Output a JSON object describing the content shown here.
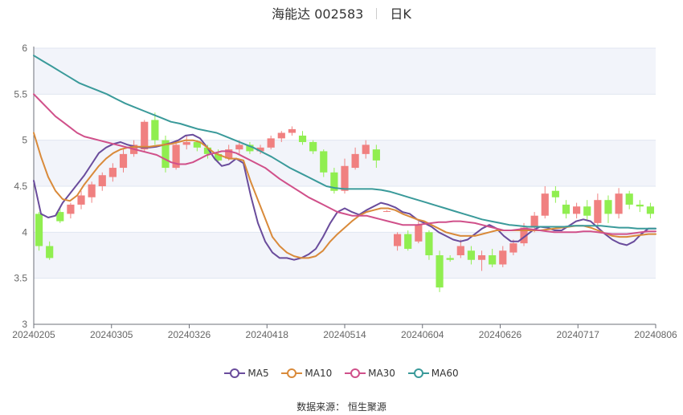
{
  "title": {
    "name": "海能达 002583",
    "period": "日K"
  },
  "source": "数据来源： 恒生聚源",
  "chart_data": {
    "type": "candlestick",
    "ylim": [
      3,
      6
    ],
    "y_ticks": [
      "3",
      "3.5",
      "4",
      "4.5",
      "5",
      "5.5",
      "6"
    ],
    "x_ticks": [
      "20240205",
      "20240305",
      "20240326",
      "20240418",
      "20240514",
      "20240604",
      "20240626",
      "20240717",
      "20240806"
    ],
    "grid": true,
    "colors": {
      "up": "#f08080",
      "down": "#90ee50",
      "band": "#f2f4fa",
      "grid": "#e0e6f1"
    },
    "legend_position": "bottom",
    "series": [
      {
        "name": "MA5",
        "color": "#6a4c9c",
        "values": [
          4.56,
          4.2,
          4.16,
          4.18,
          4.32,
          4.42,
          4.52,
          4.62,
          4.74,
          4.86,
          4.92,
          4.96,
          4.98,
          4.95,
          4.93,
          4.92,
          4.92,
          4.93,
          4.95,
          4.97,
          5.0,
          5.05,
          5.06,
          5.02,
          4.92,
          4.8,
          4.72,
          4.74,
          4.8,
          4.75,
          4.4,
          4.1,
          3.9,
          3.78,
          3.72,
          3.72,
          3.7,
          3.72,
          3.76,
          3.82,
          3.95,
          4.1,
          4.22,
          4.26,
          4.22,
          4.19,
          4.24,
          4.28,
          4.32,
          4.3,
          4.27,
          4.22,
          4.2,
          4.14,
          4.1,
          4.06,
          4.0,
          3.96,
          3.92,
          3.9,
          3.92,
          3.98,
          4.04,
          4.08,
          4.04,
          3.96,
          3.9,
          3.9,
          3.96,
          4.02,
          4.06,
          4.05,
          4.02,
          4.02,
          4.07,
          4.12,
          4.14,
          4.12,
          4.05,
          3.98,
          3.92,
          3.88,
          3.86,
          3.9,
          3.98,
          4.04,
          4.04
        ]
      },
      {
        "name": "MA10",
        "color": "#d98a3a",
        "values": [
          5.08,
          4.82,
          4.6,
          4.45,
          4.36,
          4.34,
          4.4,
          4.52,
          4.62,
          4.72,
          4.8,
          4.86,
          4.9,
          4.92,
          4.93,
          4.93,
          4.93,
          4.94,
          4.95,
          4.96,
          4.98,
          5.0,
          5.0,
          4.98,
          4.92,
          4.86,
          4.83,
          4.8,
          4.8,
          4.78,
          4.55,
          4.35,
          4.15,
          3.95,
          3.85,
          3.78,
          3.74,
          3.72,
          3.72,
          3.74,
          3.8,
          3.9,
          3.98,
          4.05,
          4.12,
          4.18,
          4.22,
          4.24,
          4.26,
          4.26,
          4.24,
          4.2,
          4.17,
          4.14,
          4.12,
          4.08,
          4.04,
          4.0,
          3.98,
          3.96,
          3.96,
          3.96,
          3.98,
          4.0,
          4.02,
          4.02,
          4.02,
          4.02,
          4.02,
          4.02,
          4.02,
          4.03,
          4.04,
          4.05,
          4.06,
          4.07,
          4.07,
          4.05,
          4.02,
          3.99,
          3.96,
          3.95,
          3.95,
          3.96,
          3.97,
          3.98,
          3.98
        ]
      },
      {
        "name": "MA30",
        "color": "#d0508a",
        "values": [
          5.5,
          5.42,
          5.34,
          5.26,
          5.2,
          5.14,
          5.08,
          5.04,
          5.02,
          5.0,
          4.98,
          4.96,
          4.94,
          4.92,
          4.9,
          4.88,
          4.86,
          4.84,
          4.8,
          4.76,
          4.74,
          4.74,
          4.76,
          4.8,
          4.84,
          4.86,
          4.88,
          4.88,
          4.86,
          4.82,
          4.78,
          4.74,
          4.7,
          4.64,
          4.58,
          4.53,
          4.48,
          4.43,
          4.38,
          4.34,
          4.3,
          4.26,
          4.22,
          4.2,
          4.18,
          4.18,
          4.18,
          4.16,
          4.14,
          4.12,
          4.1,
          4.08,
          4.08,
          4.08,
          4.09,
          4.1,
          4.11,
          4.11,
          4.12,
          4.12,
          4.11,
          4.1,
          4.08,
          4.06,
          4.04,
          4.02,
          4.02,
          4.03,
          4.04,
          4.03,
          4.02,
          4.01,
          4.0,
          4.0,
          4.0,
          4.0,
          4.01,
          4.01,
          4.0,
          3.99,
          3.98,
          3.98,
          3.98,
          3.99,
          4.0,
          4.01,
          4.01
        ]
      },
      {
        "name": "MA60",
        "color": "#3a9a9a",
        "values": [
          5.92,
          5.86,
          5.8,
          5.74,
          5.68,
          5.62,
          5.58,
          5.54,
          5.5,
          5.45,
          5.4,
          5.36,
          5.32,
          5.28,
          5.24,
          5.2,
          5.18,
          5.15,
          5.12,
          5.1,
          5.08,
          5.04,
          5.0,
          4.96,
          4.92,
          4.87,
          4.82,
          4.76,
          4.7,
          4.65,
          4.6,
          4.55,
          4.5,
          4.48,
          4.47,
          4.47,
          4.47,
          4.47,
          4.46,
          4.44,
          4.41,
          4.38,
          4.35,
          4.32,
          4.29,
          4.26,
          4.23,
          4.2,
          4.17,
          4.14,
          4.12,
          4.1,
          4.08,
          4.07,
          4.06,
          4.06,
          4.06,
          4.06,
          4.06,
          4.07,
          4.07,
          4.07,
          4.07,
          4.06,
          4.05,
          4.05,
          4.04,
          4.04,
          4.04
        ]
      },
      {
        "name": "K",
        "ohlc": [
          [
            4.2,
            3.85,
            4.22,
            3.8
          ],
          [
            3.85,
            3.72,
            3.9,
            3.7
          ],
          [
            4.22,
            4.12,
            4.28,
            4.1
          ],
          [
            4.2,
            4.3,
            4.32,
            4.15
          ],
          [
            4.3,
            4.4,
            4.45,
            4.25
          ],
          [
            4.38,
            4.52,
            4.55,
            4.32
          ],
          [
            4.5,
            4.62,
            4.65,
            4.45
          ],
          [
            4.6,
            4.7,
            4.75,
            4.55
          ],
          [
            4.7,
            4.85,
            4.9,
            4.65
          ],
          [
            4.85,
            4.95,
            5.0,
            4.82
          ],
          [
            4.9,
            5.2,
            5.22,
            4.88
          ],
          [
            5.22,
            5.0,
            5.3,
            4.95
          ],
          [
            5.0,
            4.7,
            5.05,
            4.65
          ],
          [
            4.7,
            4.95,
            5.0,
            4.68
          ],
          [
            4.95,
            4.98,
            5.05,
            4.9
          ],
          [
            4.98,
            4.92,
            5.0,
            4.88
          ],
          [
            4.92,
            4.85,
            4.95,
            4.8
          ],
          [
            4.85,
            4.78,
            4.9,
            4.75
          ],
          [
            4.8,
            4.9,
            4.95,
            4.78
          ],
          [
            4.9,
            4.95,
            5.0,
            4.85
          ],
          [
            4.95,
            4.88,
            4.98,
            4.85
          ],
          [
            4.88,
            4.92,
            4.95,
            4.85
          ],
          [
            4.92,
            5.02,
            5.05,
            4.9
          ],
          [
            5.02,
            5.08,
            5.1,
            4.98
          ],
          [
            5.08,
            5.12,
            5.15,
            5.05
          ],
          [
            5.05,
            4.98,
            5.1,
            4.95
          ],
          [
            4.98,
            4.88,
            5.0,
            4.85
          ],
          [
            4.88,
            4.65,
            4.9,
            4.6
          ],
          [
            4.65,
            4.45,
            4.7,
            4.42
          ],
          [
            4.45,
            4.72,
            4.8,
            4.42
          ],
          [
            4.7,
            4.85,
            4.92,
            4.68
          ],
          [
            4.85,
            4.95,
            5.0,
            4.8
          ],
          [
            4.9,
            4.78,
            4.95,
            4.7
          ],
          [
            4.23,
            4.23,
            4.24,
            4.22
          ],
          [
            3.85,
            3.98,
            4.0,
            3.8
          ],
          [
            3.98,
            3.82,
            4.02,
            3.8
          ],
          [
            3.9,
            4.08,
            4.12,
            3.88
          ],
          [
            4.0,
            3.75,
            4.02,
            3.7
          ],
          [
            3.75,
            3.4,
            3.8,
            3.35
          ],
          [
            3.72,
            3.7,
            3.75,
            3.68
          ],
          [
            3.75,
            3.85,
            3.92,
            3.72
          ],
          [
            3.8,
            3.7,
            3.85,
            3.65
          ],
          [
            3.7,
            3.75,
            3.8,
            3.58
          ],
          [
            3.75,
            3.65,
            3.82,
            3.62
          ],
          [
            3.65,
            3.8,
            3.85,
            3.62
          ],
          [
            3.78,
            3.88,
            3.92,
            3.75
          ],
          [
            3.88,
            4.05,
            4.1,
            3.85
          ],
          [
            4.05,
            4.18,
            4.22,
            4.0
          ],
          [
            4.18,
            4.42,
            4.5,
            4.15
          ],
          [
            4.45,
            4.38,
            4.5,
            4.32
          ],
          [
            4.3,
            4.2,
            4.35,
            4.15
          ],
          [
            4.2,
            4.28,
            4.32,
            4.15
          ],
          [
            4.28,
            4.18,
            4.35,
            4.12
          ],
          [
            4.1,
            4.35,
            4.42,
            4.05
          ],
          [
            4.35,
            4.2,
            4.4,
            4.1
          ],
          [
            4.2,
            4.42,
            4.48,
            4.15
          ],
          [
            4.42,
            4.3,
            4.45,
            4.25
          ],
          [
            4.3,
            4.28,
            4.35,
            4.22
          ],
          [
            4.28,
            4.2,
            4.32,
            4.15
          ]
        ]
      }
    ]
  },
  "legend": [
    {
      "label": "MA5",
      "color": "#6a4c9c"
    },
    {
      "label": "MA10",
      "color": "#d98a3a"
    },
    {
      "label": "MA30",
      "color": "#d0508a"
    },
    {
      "label": "MA60",
      "color": "#3a9a9a"
    }
  ]
}
